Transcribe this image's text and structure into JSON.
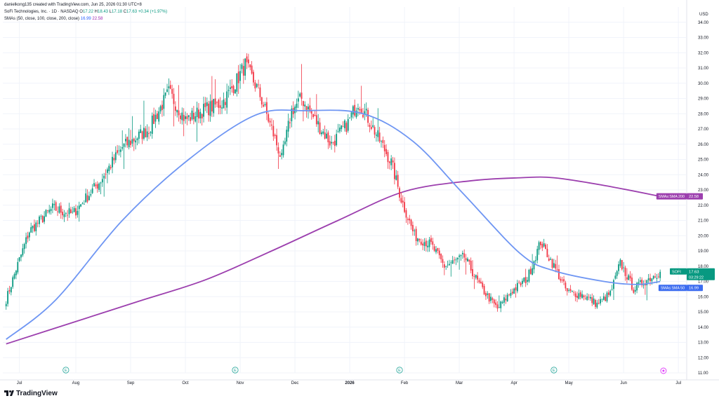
{
  "header": {
    "author_line": "danielkong135 created with TradingView.com, Jun 25, 2026 01:30 UTC+8",
    "symbol_line": "SoFi Technologies, Inc. · 1D · NASDAQ",
    "ohlc": {
      "o_label": "O",
      "o": "17.22",
      "h_label": "H",
      "h": "18.43",
      "l_label": "L",
      "l": "17.18",
      "c_label": "C",
      "c": "17.63",
      "change": "+0.34 (+1.97%)"
    },
    "sma_line": {
      "label": "SMAs (50, close, 100, close, 200, close)",
      "sma50": "16.99",
      "sma200": "22.58"
    }
  },
  "brand": "TradingView",
  "colors": {
    "up": "#089981",
    "down": "#f23645",
    "sma50": "#6f96f3",
    "sma200": "#9c3fae",
    "grid": "#f0f3fa",
    "axis_text": "#131722"
  },
  "chart_data": {
    "type": "candlestick",
    "symbol": "SOFI",
    "currency_label": "USD",
    "ylim": [
      11.0,
      35.0
    ],
    "y_ticks": [
      "34.00",
      "33.00",
      "32.00",
      "31.00",
      "30.00",
      "29.00",
      "28.00",
      "27.00",
      "26.00",
      "25.00",
      "24.00",
      "23.00",
      "22.00",
      "21.00",
      "20.00",
      "19.00",
      "18.00",
      "17.00",
      "16.00",
      "15.00",
      "14.00",
      "13.00",
      "12.00",
      "11.00"
    ],
    "x_ticks": [
      "Jul",
      "Aug",
      "Sep",
      "Oct",
      "Nov",
      "Dec",
      "2026",
      "Feb",
      "Mar",
      "Apr",
      "May",
      "Jun",
      "Jul"
    ],
    "x_tick_index": [
      8,
      42,
      75,
      108,
      141,
      174,
      207,
      240,
      273,
      306,
      339,
      372,
      405
    ],
    "earnings_markers": [
      {
        "label": "E",
        "index": 36
      },
      {
        "label": "E",
        "index": 138
      },
      {
        "label": "E",
        "index": 237
      },
      {
        "label": "E",
        "index": 330
      }
    ],
    "event_marker_index": 396,
    "price_label": {
      "symbol": "SOFI",
      "value": "17.63",
      "countdown": "03:29:22"
    },
    "sma50_label": {
      "name": "SMAs:SMA 50",
      "value": "16.99"
    },
    "sma200_label": {
      "name": "SMAs:SMA 200",
      "value": "22.58"
    },
    "anchors": [
      [
        0,
        15.8
      ],
      [
        6,
        17.8
      ],
      [
        14,
        20.3
      ],
      [
        28,
        21.8
      ],
      [
        40,
        21.4
      ],
      [
        56,
        23.5
      ],
      [
        70,
        25.8
      ],
      [
        86,
        27.0
      ],
      [
        98,
        29.4
      ],
      [
        108,
        27.6
      ],
      [
        120,
        28.3
      ],
      [
        130,
        28.7
      ],
      [
        138,
        30.0
      ],
      [
        144,
        31.2
      ],
      [
        152,
        29.5
      ],
      [
        160,
        27.0
      ],
      [
        166,
        25.0
      ],
      [
        172,
        28.2
      ],
      [
        178,
        29.0
      ],
      [
        186,
        27.6
      ],
      [
        196,
        26.0
      ],
      [
        206,
        27.4
      ],
      [
        212,
        28.8
      ],
      [
        218,
        27.7
      ],
      [
        232,
        24.8
      ],
      [
        238,
        22.4
      ],
      [
        246,
        20.0
      ],
      [
        256,
        19.4
      ],
      [
        264,
        18.0
      ],
      [
        276,
        18.6
      ],
      [
        286,
        16.6
      ],
      [
        296,
        15.2
      ],
      [
        304,
        16.3
      ],
      [
        314,
        17.2
      ],
      [
        322,
        19.6
      ],
      [
        330,
        18.0
      ],
      [
        338,
        16.3
      ],
      [
        348,
        16.1
      ],
      [
        356,
        15.5
      ],
      [
        364,
        16.2
      ],
      [
        370,
        18.2
      ],
      [
        378,
        16.5
      ],
      [
        386,
        17.1
      ],
      [
        394,
        17.63
      ]
    ],
    "sma50": [
      [
        0,
        13.2
      ],
      [
        30,
        15.8
      ],
      [
        70,
        21.0
      ],
      [
        110,
        25.0
      ],
      [
        150,
        27.9
      ],
      [
        180,
        28.2
      ],
      [
        215,
        28.0
      ],
      [
        245,
        26.2
      ],
      [
        275,
        22.8
      ],
      [
        310,
        18.8
      ],
      [
        330,
        17.7
      ],
      [
        360,
        17.0
      ],
      [
        380,
        16.8
      ],
      [
        394,
        16.99
      ]
    ],
    "sma200": [
      [
        0,
        12.9
      ],
      [
        40,
        14.3
      ],
      [
        80,
        15.7
      ],
      [
        120,
        17.1
      ],
      [
        160,
        19.0
      ],
      [
        200,
        21.0
      ],
      [
        240,
        22.9
      ],
      [
        280,
        23.6
      ],
      [
        310,
        23.8
      ],
      [
        330,
        23.8
      ],
      [
        360,
        23.3
      ],
      [
        394,
        22.58
      ]
    ]
  }
}
